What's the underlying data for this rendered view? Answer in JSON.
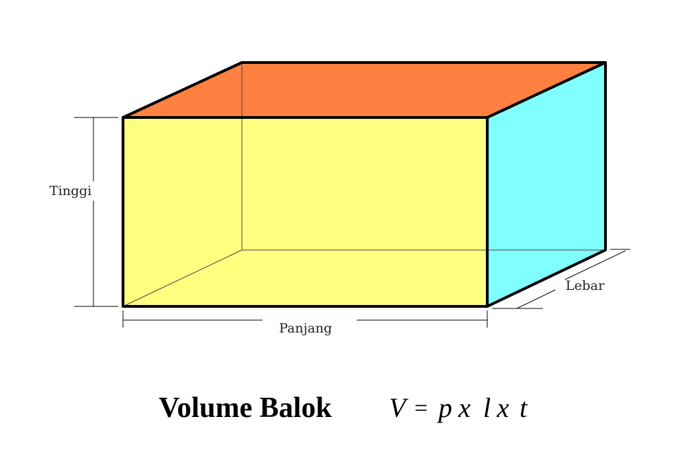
{
  "labels": {
    "height": "Tinggi",
    "length": "Panjang",
    "width": "Lebar"
  },
  "title": "Volume Balok",
  "formula": {
    "lhs": "V",
    "eq": "=",
    "p": "p",
    "x1": "x",
    "l": "l",
    "x2": "x",
    "t": "t"
  },
  "colors": {
    "top_face": "#FF8040",
    "front_face": "#FFFF80",
    "side_face": "#80FFFF",
    "edge": "#000000"
  }
}
